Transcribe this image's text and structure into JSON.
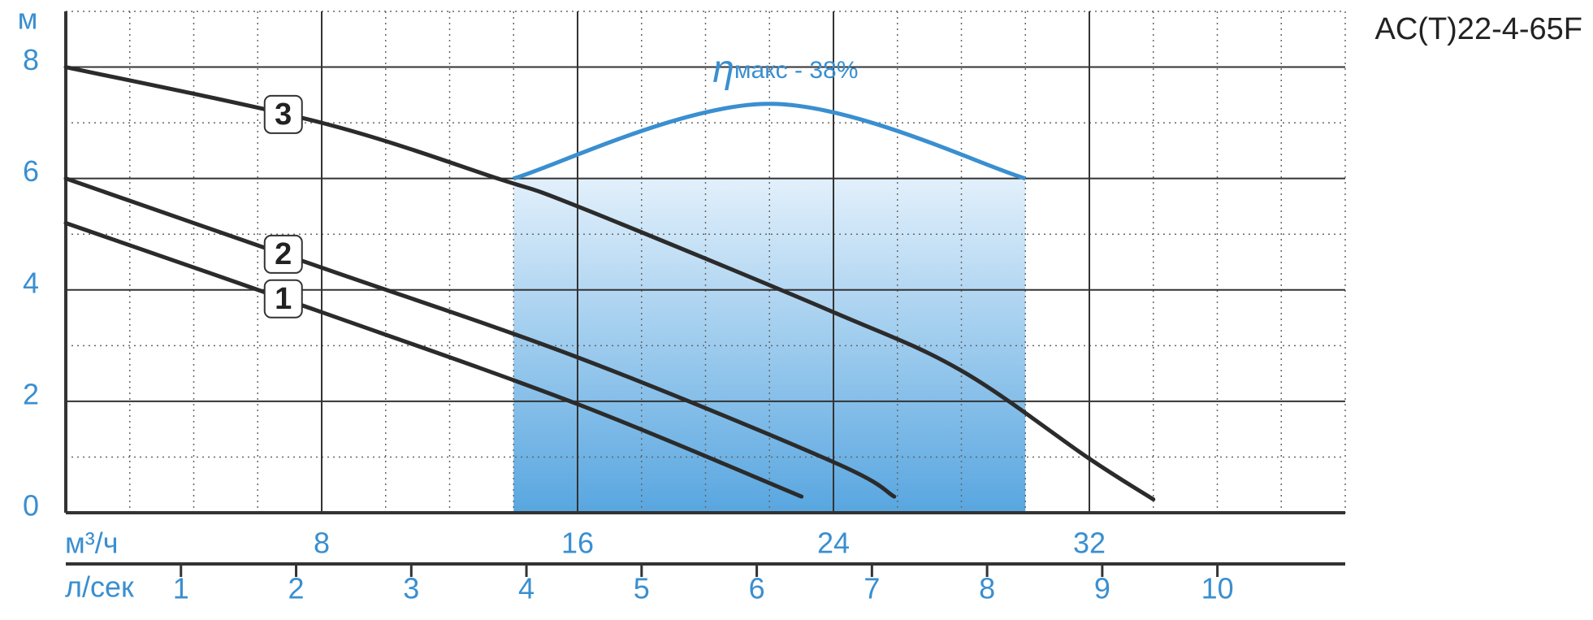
{
  "chart_data": {
    "type": "line",
    "title": "AC(T)22-4-65F",
    "y_label": "м",
    "x_label": "м³/ч",
    "x2_label": "л/сек",
    "xlim": [
      0,
      40
    ],
    "ylim": [
      0,
      9
    ],
    "xticks": [
      8,
      16,
      24,
      32
    ],
    "yticks": [
      0,
      2,
      4,
      6,
      8
    ],
    "xminor": [
      2,
      4,
      6,
      10,
      12,
      14,
      18,
      20,
      22,
      26,
      28,
      30,
      34,
      36,
      38,
      40
    ],
    "yminor": [
      1,
      3,
      5,
      7,
      9
    ],
    "x2lim": [
      0,
      11.11
    ],
    "x2ticks": [
      1,
      2,
      3,
      4,
      5,
      6,
      7,
      8,
      9,
      10
    ],
    "grid": true,
    "series": [
      {
        "name": "1",
        "color": "#2b2b2b",
        "x": [
          0,
          8,
          16,
          23
        ],
        "values": [
          5.2,
          3.6,
          1.95,
          0.29
        ]
      },
      {
        "name": "2",
        "color": "#2b2b2b",
        "x": [
          0,
          8,
          16,
          24,
          25.9
        ],
        "values": [
          6,
          4.4,
          2.79,
          0.91,
          0.29
        ]
      },
      {
        "name": "3",
        "color": "#2b2b2b",
        "x": [
          0,
          8,
          13.5,
          16,
          24,
          28,
          32,
          34
        ],
        "values": [
          8,
          7.0,
          6.0,
          5.5,
          3.6,
          2.55,
          0.97,
          0.24
        ]
      }
    ],
    "efficiency": {
      "symbol": "η",
      "label": "макс - 38%",
      "color": "#3a8fd0",
      "x": [
        14,
        22,
        30
      ],
      "values": [
        6,
        7.34,
        6
      ]
    }
  }
}
